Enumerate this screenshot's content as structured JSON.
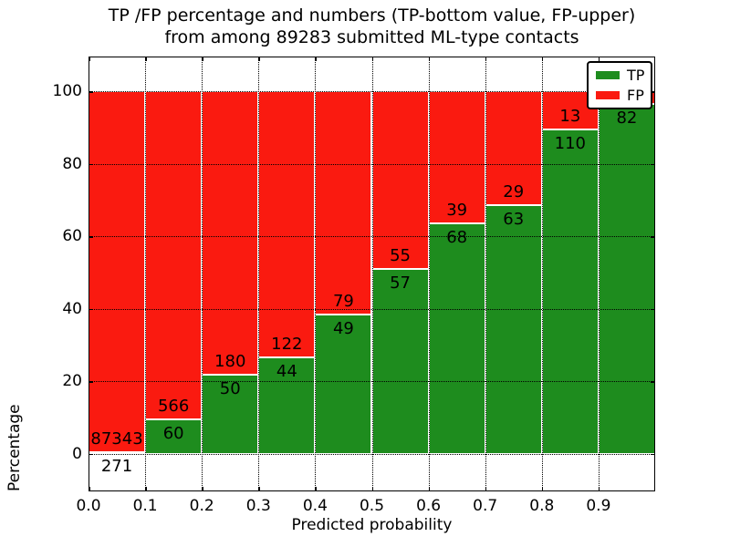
{
  "title": {
    "line1": "TP /FP percentage and numbers (TP-bottom value, FP-upper)",
    "line2": "from among 89283 submitted ML-type contacts"
  },
  "axes": {
    "xlabel": "Predicted probability",
    "ylabel": "Percentage",
    "xlim": [
      0,
      1
    ],
    "ylim": [
      -10.4,
      109.6
    ],
    "x_tick_values": [
      0,
      0.1,
      0.2,
      0.3,
      0.4,
      0.5,
      0.6,
      0.7,
      0.8,
      0.9
    ],
    "x_tick_labels": [
      "0.0",
      "0.1",
      "0.2",
      "0.3",
      "0.4",
      "0.5",
      "0.6",
      "0.7",
      "0.8",
      "0.9"
    ],
    "y_tick_values": [
      0,
      20,
      40,
      60,
      80,
      100
    ],
    "y_tick_labels": [
      "0",
      "20",
      "40",
      "60",
      "80",
      "100"
    ],
    "grid": true
  },
  "colors": {
    "tp": "#1e8c1e",
    "fp": "#fa1a10",
    "text": "#000000",
    "background": "#ffffff"
  },
  "legend": {
    "position": "upper-right",
    "items": [
      {
        "label": "TP",
        "color": "#1e8c1e"
      },
      {
        "label": "FP",
        "color": "#fa1a10"
      }
    ]
  },
  "chart_data": {
    "type": "bar",
    "stacked": true,
    "title": "TP /FP percentage and numbers (TP-bottom value, FP-upper) from among 89283 submitted ML-type contacts",
    "xlabel": "Predicted probability",
    "ylabel": "Percentage",
    "total_submitted_contacts": 89283,
    "bin_width": 0.1,
    "legend_entries": [
      "TP",
      "FP"
    ],
    "bins": [
      {
        "range": "0.0-0.1",
        "x0": 0.0,
        "tp_count": 271,
        "fp_count": 87343,
        "tp_pct": 0.31,
        "fp_pct": 99.69
      },
      {
        "range": "0.1-0.2",
        "x0": 0.1,
        "tp_count": 60,
        "fp_count": 566,
        "tp_pct": 9.58,
        "fp_pct": 90.42
      },
      {
        "range": "0.2-0.3",
        "x0": 0.2,
        "tp_count": 50,
        "fp_count": 180,
        "tp_pct": 21.74,
        "fp_pct": 78.26
      },
      {
        "range": "0.3-0.4",
        "x0": 0.3,
        "tp_count": 44,
        "fp_count": 122,
        "tp_pct": 26.51,
        "fp_pct": 73.49
      },
      {
        "range": "0.4-0.5",
        "x0": 0.4,
        "tp_count": 49,
        "fp_count": 79,
        "tp_pct": 38.28,
        "fp_pct": 61.72
      },
      {
        "range": "0.5-0.6",
        "x0": 0.5,
        "tp_count": 57,
        "fp_count": 55,
        "tp_pct": 50.89,
        "fp_pct": 49.11
      },
      {
        "range": "0.6-0.7",
        "x0": 0.6,
        "tp_count": 68,
        "fp_count": 39,
        "tp_pct": 63.55,
        "fp_pct": 36.45
      },
      {
        "range": "0.7-0.8",
        "x0": 0.7,
        "tp_count": 63,
        "fp_count": 29,
        "tp_pct": 68.48,
        "fp_pct": 31.52
      },
      {
        "range": "0.8-0.9",
        "x0": 0.8,
        "tp_count": 110,
        "fp_count": 13,
        "tp_pct": 89.43,
        "fp_pct": 10.57
      },
      {
        "range": "0.9-1.0",
        "x0": 0.9,
        "tp_count": 82,
        "fp_count": null,
        "tp_pct": 96.5,
        "fp_pct": 3.5
      }
    ]
  }
}
